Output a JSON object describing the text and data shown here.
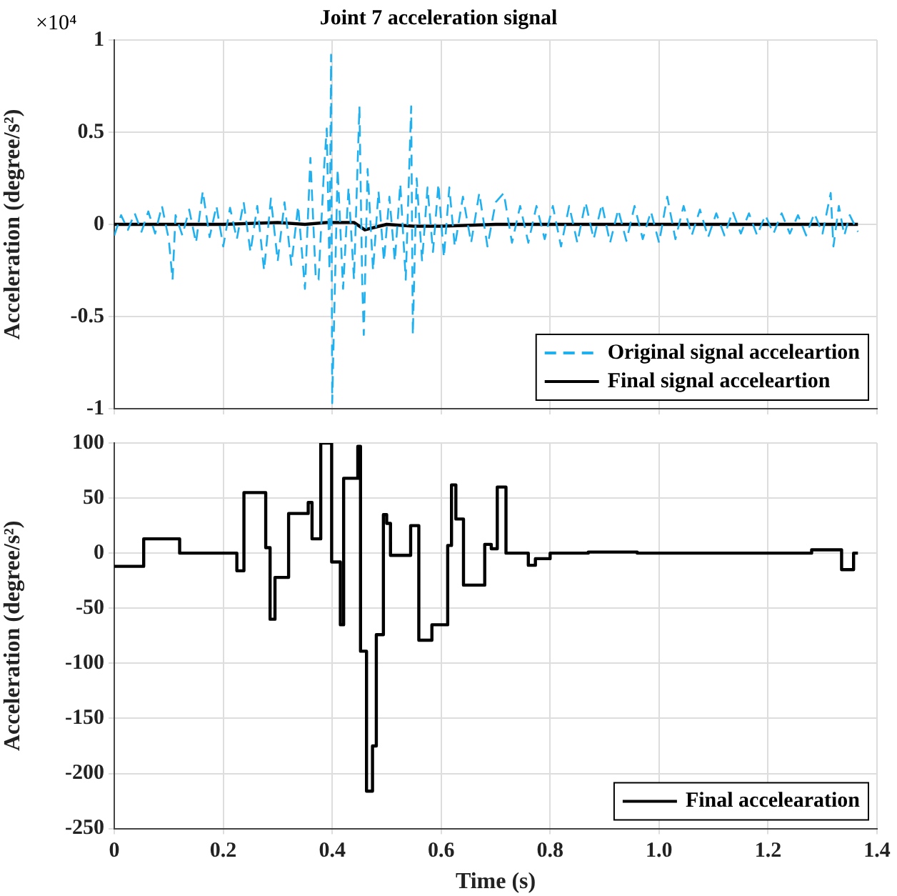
{
  "chart_data": [
    {
      "type": "line",
      "title": "Joint 7 acceleration signal",
      "ylabel": "Acceleration (degree/s²)",
      "annotations": [
        "×10⁴"
      ],
      "xlim": [
        0,
        1.4
      ],
      "xticks": [
        0,
        0.2,
        0.4,
        0.6,
        0.8,
        1.0,
        1.2,
        1.4
      ],
      "ylim": [
        -1,
        1
      ],
      "yticks": [
        -1,
        -0.5,
        0,
        0.5,
        1
      ],
      "tick_labels": "y",
      "grid": true,
      "legend": "bottom right",
      "marker": "none",
      "series": [
        {
          "name": "Original signal acceleartion",
          "color": "#1fb0ef",
          "line_style": "dashed",
          "x": [
            0,
            0.0125,
            0.025,
            0.0375,
            0.05,
            0.0625,
            0.075,
            0.0875,
            0.1,
            0.107,
            0.1125,
            0.125,
            0.1375,
            0.15,
            0.1625,
            0.175,
            0.1875,
            0.2,
            0.2125,
            0.225,
            0.2375,
            0.25,
            0.2625,
            0.275,
            0.2875,
            0.3,
            0.3125,
            0.325,
            0.3375,
            0.35,
            0.36,
            0.37,
            0.375,
            0.385,
            0.39,
            0.395,
            0.398,
            0.4,
            0.41,
            0.42,
            0.43,
            0.44,
            0.45,
            0.455,
            0.458,
            0.465,
            0.475,
            0.485,
            0.495,
            0.505,
            0.515,
            0.525,
            0.535,
            0.545,
            0.548,
            0.555,
            0.565,
            0.575,
            0.585,
            0.595,
            0.605,
            0.615,
            0.625,
            0.64,
            0.655,
            0.67,
            0.685,
            0.7,
            0.715,
            0.73,
            0.745,
            0.76,
            0.775,
            0.79,
            0.805,
            0.82,
            0.835,
            0.85,
            0.865,
            0.88,
            0.895,
            0.91,
            0.925,
            0.94,
            0.955,
            0.97,
            0.985,
            1.0,
            1.015,
            1.03,
            1.045,
            1.06,
            1.075,
            1.09,
            1.105,
            1.12,
            1.135,
            1.15,
            1.165,
            1.18,
            1.195,
            1.21,
            1.225,
            1.24,
            1.255,
            1.27,
            1.285,
            1.3,
            1.315,
            1.32,
            1.33,
            1.34,
            1.35,
            1.365
          ],
          "values": [
            -0.06,
            0.05,
            -0.03,
            0.06,
            -0.04,
            0.07,
            -0.05,
            0.1,
            -0.08,
            -0.3,
            0.05,
            -0.06,
            0.08,
            -0.1,
            0.18,
            -0.07,
            0.1,
            -0.12,
            0.09,
            -0.08,
            0.12,
            -0.15,
            0.1,
            -0.25,
            0.14,
            -0.2,
            0.12,
            -0.22,
            0.1,
            -0.35,
            0.36,
            -0.3,
            -0.3,
            0.3,
            0.52,
            -0.25,
            0.92,
            -0.97,
            0.3,
            -0.35,
            0.2,
            -0.3,
            0.64,
            -0.3,
            -0.6,
            0.3,
            -0.25,
            0.18,
            -0.2,
            0.15,
            -0.2,
            0.22,
            -0.3,
            0.64,
            -0.6,
            0.25,
            -0.2,
            0.2,
            -0.15,
            0.22,
            -0.18,
            0.2,
            -0.12,
            0.15,
            -0.1,
            0.17,
            -0.12,
            0.12,
            0.17,
            -0.1,
            0.1,
            -0.1,
            0.1,
            -0.08,
            0.1,
            -0.12,
            0.1,
            -0.1,
            0.12,
            -0.08,
            0.11,
            -0.1,
            0.08,
            -0.09,
            0.1,
            -0.08,
            0.07,
            -0.1,
            0.15,
            -0.08,
            0.1,
            -0.06,
            0.08,
            -0.07,
            0.06,
            -0.06,
            0.07,
            -0.05,
            0.06,
            -0.06,
            0.05,
            -0.05,
            0.06,
            -0.05,
            0.05,
            -0.06,
            0.06,
            -0.05,
            0.17,
            -0.12,
            0.1,
            -0.06,
            0.05,
            -0.04
          ]
        },
        {
          "name": "Final signal acceleartion",
          "color": "#000000",
          "line_style": "solid",
          "x": [
            0,
            0.2,
            0.3,
            0.35,
            0.39,
            0.41,
            0.44,
            0.46,
            0.5,
            0.55,
            0.6,
            0.7,
            0.8,
            1.0,
            1.2,
            1.365
          ],
          "values": [
            0,
            0,
            0.01,
            0,
            0.01,
            0.01,
            0.01,
            -0.03,
            0,
            -0.01,
            -0.01,
            0,
            0,
            0,
            0,
            0
          ]
        }
      ]
    },
    {
      "type": "step",
      "xlabel": "Time (s)",
      "ylabel": "Acceleration (degree/s²)",
      "xlim": [
        0,
        1.4
      ],
      "xticks": [
        0,
        0.2,
        0.4,
        0.6,
        0.8,
        {
          "value": 1,
          "label": "1.0"
        },
        1.2,
        1.4
      ],
      "ylim": [
        -250,
        100
      ],
      "yticks": [
        -250,
        -200,
        -150,
        -100,
        -50,
        0,
        50,
        100
      ],
      "grid": true,
      "legend": "bottom right",
      "marker": "none",
      "series": [
        {
          "name": "Final accelearation",
          "color": "#000000",
          "line_style": "solid",
          "x": [
            0,
            0.054,
            0.12,
            0.225,
            0.238,
            0.278,
            0.286,
            0.295,
            0.32,
            0.356,
            0.363,
            0.379,
            0.399,
            0.415,
            0.421,
            0.447,
            0.452,
            0.463,
            0.474,
            0.481,
            0.494,
            0.5,
            0.507,
            0.544,
            0.559,
            0.583,
            0.612,
            0.619,
            0.627,
            0.641,
            0.68,
            0.692,
            0.703,
            0.719,
            0.76,
            0.773,
            0.8,
            0.87,
            0.96,
            1.28,
            1.335,
            1.357,
            1.365
          ],
          "values": [
            -12,
            13,
            0,
            -16,
            55,
            5,
            -60,
            -22,
            36,
            46,
            13,
            100,
            -8,
            -65,
            68,
            97,
            -89,
            -216,
            -175,
            -74,
            35,
            27,
            -2,
            25,
            -79,
            -65,
            7,
            62,
            31,
            -29,
            8,
            4,
            60,
            0,
            -11,
            -5,
            0,
            1,
            0,
            3,
            -15,
            0,
            0
          ]
        }
      ]
    }
  ]
}
